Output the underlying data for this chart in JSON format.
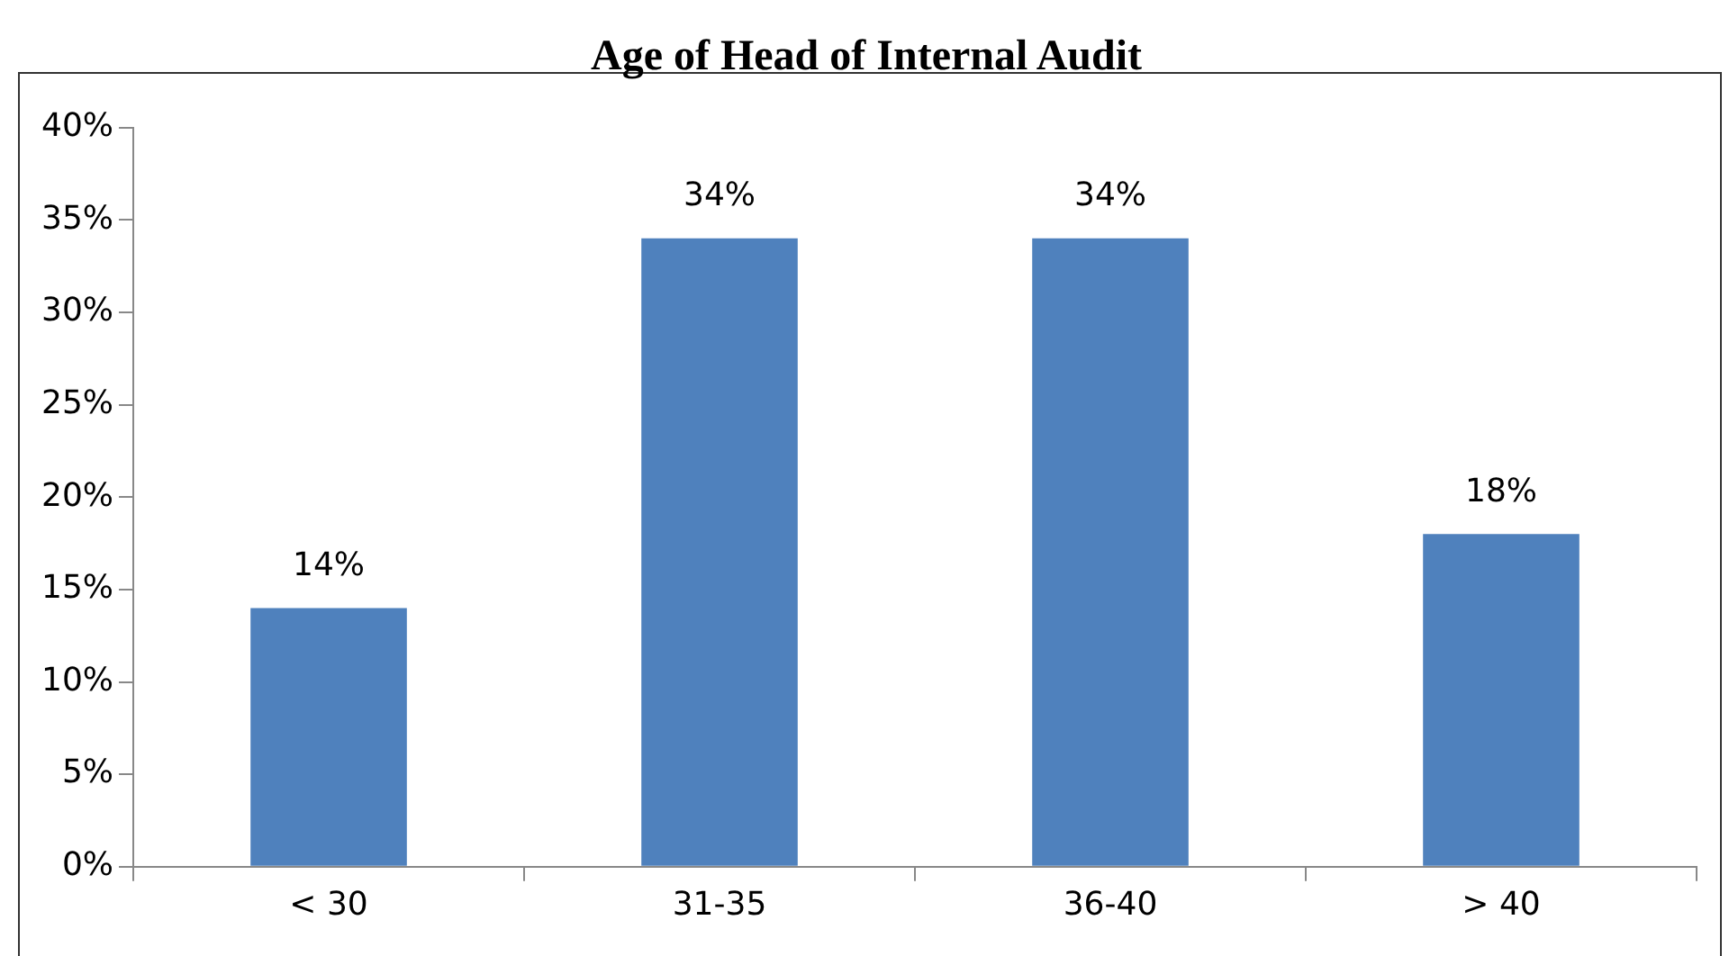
{
  "chart_data": {
    "type": "bar",
    "title": "Age of Head of Internal Audit",
    "categories": [
      "< 30",
      "31-35",
      "36-40",
      "> 40"
    ],
    "values": [
      14,
      34,
      34,
      18
    ],
    "value_labels": [
      "14%",
      "34%",
      "34%",
      "18%"
    ],
    "color": "#4f81bd",
    "ylim": [
      0,
      40
    ],
    "yticks": [
      {
        "value": 0,
        "label": "0%"
      },
      {
        "value": 5,
        "label": "5%"
      },
      {
        "value": 10,
        "label": "10%"
      },
      {
        "value": 15,
        "label": "15%"
      },
      {
        "value": 20,
        "label": "20%"
      },
      {
        "value": 25,
        "label": "25%"
      },
      {
        "value": 30,
        "label": "30%"
      },
      {
        "value": 35,
        "label": "35%"
      },
      {
        "value": 40,
        "label": "40%"
      }
    ],
    "grid": false,
    "legend": false
  }
}
